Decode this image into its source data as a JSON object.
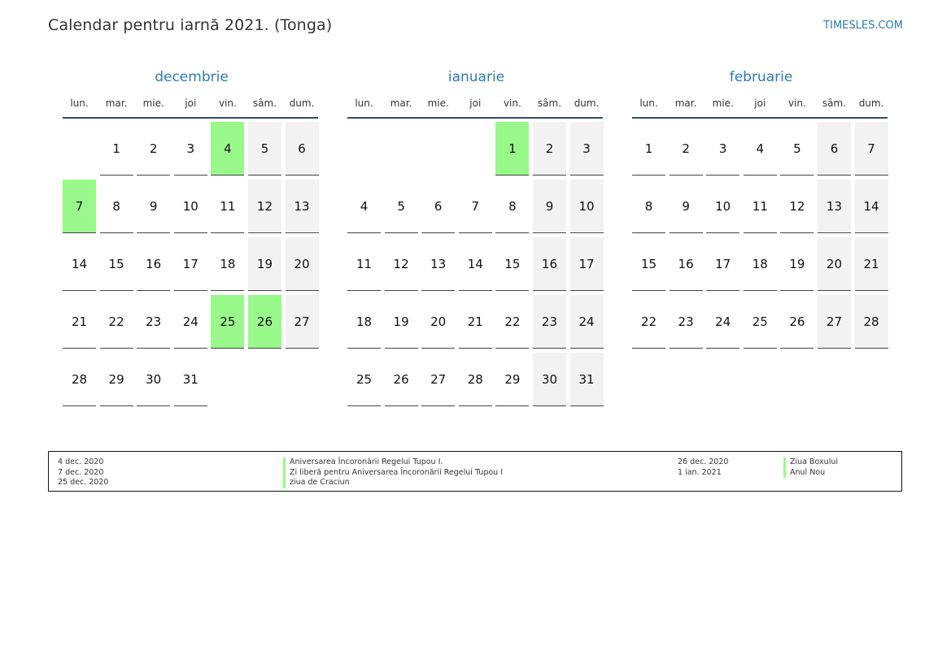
{
  "header": {
    "title": "Calendar pentru iarnă 2021. (Tonga)",
    "site": "TIMESLES.COM"
  },
  "weekdays": [
    "lun.",
    "mar.",
    "mie.",
    "joi",
    "vin.",
    "sâm.",
    "dum."
  ],
  "colors": {
    "accent": "#2b7bb9",
    "holiday": "#98f88a",
    "weekend": "#f2f2f2"
  },
  "months": [
    {
      "name": "decembrie",
      "leading_blanks": 1,
      "days": 31,
      "holidays": [
        4,
        7,
        25,
        26
      ]
    },
    {
      "name": "ianuarie",
      "leading_blanks": 4,
      "days": 31,
      "holidays": [
        1
      ]
    },
    {
      "name": "februarie",
      "leading_blanks": 0,
      "days": 28,
      "holidays": []
    }
  ],
  "legend": {
    "left_dates": [
      "4 dec. 2020",
      "7 dec. 2020",
      "25 dec. 2020"
    ],
    "left_names": [
      "Aniversarea Încoronării Regelui Tupou I.",
      "Zi liberă pentru Aniversarea Încoronării Regelui Tupou I",
      "ziua de Craciun"
    ],
    "right_dates": [
      "26 dec. 2020",
      "1 ian. 2021"
    ],
    "right_names": [
      "Ziua Boxului",
      "Anul Nou"
    ]
  }
}
